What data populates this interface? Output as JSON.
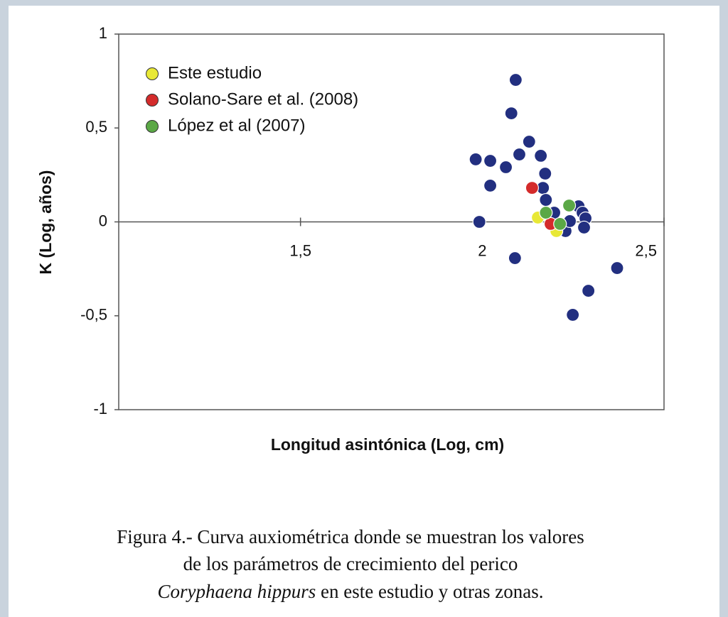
{
  "chart_data": {
    "type": "scatter",
    "xlabel": "Longitud asintónica (Log, cm)",
    "ylabel": "K (Log, años)",
    "xlim": [
      1,
      2.5
    ],
    "ylim": [
      -1,
      1
    ],
    "xticks": [
      {
        "value": 1.5,
        "label": "1,5"
      },
      2,
      {
        "value": 2.5,
        "label": "2,5"
      }
    ],
    "yticks": [
      -1,
      {
        "value": -0.5,
        "label": "-0,5"
      },
      0,
      {
        "value": 0.5,
        "label": "0,5"
      },
      1
    ],
    "legend": "upper left",
    "series": [
      {
        "name": null,
        "color": "#222f80",
        "x": [
          1.982,
          2.022,
          2.065,
          2.092,
          2.08,
          2.102,
          2.129,
          2.161,
          2.173,
          2.022,
          1.992,
          2.09,
          2.167,
          2.175,
          2.198,
          2.265,
          2.276,
          2.284,
          2.28,
          2.229,
          2.371,
          2.292,
          2.249,
          2.241
        ],
        "y": [
          0.333,
          0.325,
          0.291,
          0.756,
          0.578,
          0.359,
          0.427,
          0.352,
          0.257,
          0.193,
          0.0,
          -0.193,
          0.181,
          0.117,
          0.049,
          0.083,
          0.049,
          0.019,
          -0.03,
          -0.049,
          -0.246,
          -0.367,
          -0.495,
          0.004
        ]
      },
      {
        "name": "Este estudio",
        "color": "#e8e836",
        "x": [
          2.153,
          2.204
        ],
        "y": [
          0.023,
          -0.049
        ]
      },
      {
        "name": "Solano-Sare et al. (2008)",
        "color": "#d42b2b",
        "x": [
          2.137,
          2.188
        ],
        "y": [
          0.181,
          -0.011
        ]
      },
      {
        "name": "López et al (2007)",
        "color": "#5ba846",
        "x": [
          2.239,
          2.175,
          2.214
        ],
        "y": [
          0.087,
          0.049,
          -0.011
        ]
      }
    ]
  },
  "caption": {
    "line1": "Figura 4.- Curva auxiométrica donde se muestran los valores",
    "line2": "de los parámetros de crecimiento del perico",
    "species": "Coryphaena hippurs",
    "rest": " en este estudio y otras zonas."
  }
}
